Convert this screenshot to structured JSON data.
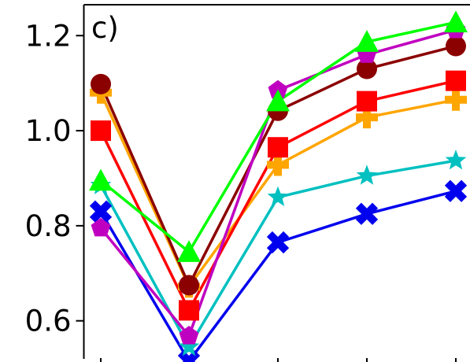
{
  "chart_data": {
    "type": "line",
    "panel_label": "c)",
    "title": "",
    "xlabel": "",
    "ylabel": "",
    "x": [
      1,
      2,
      3,
      4,
      5
    ],
    "ylim": [
      0.52,
      1.265
    ],
    "yticks": [
      0.6,
      0.8,
      1.0,
      1.2
    ],
    "ytick_labels": [
      "0.6",
      "0.8",
      "1.0",
      "1.2"
    ],
    "grid": false,
    "legend": false,
    "series": [
      {
        "color": "#0000ee",
        "marker": "x-cross",
        "values": [
          0.83,
          0.515,
          0.765,
          0.825,
          0.873
        ]
      },
      {
        "color": "#00c0c0",
        "marker": "star",
        "values": [
          0.885,
          0.545,
          0.86,
          0.905,
          0.937
        ]
      },
      {
        "color": "#ffa500",
        "marker": "plus",
        "values": [
          1.08,
          0.672,
          0.928,
          1.028,
          1.065
        ]
      },
      {
        "color": "#ff0000",
        "marker": "square",
        "values": [
          1.0,
          0.622,
          0.965,
          1.062,
          1.105
        ]
      },
      {
        "color": "#8b0000",
        "marker": "circle",
        "values": [
          1.098,
          0.675,
          1.042,
          1.13,
          1.178
        ]
      },
      {
        "color": "#c000c0",
        "marker": "pentagon",
        "values": [
          0.795,
          0.568,
          1.085,
          1.16,
          1.212
        ]
      },
      {
        "color": "#00ff00",
        "marker": "triangle",
        "values": [
          0.895,
          0.745,
          1.062,
          1.187,
          1.228
        ]
      }
    ]
  }
}
